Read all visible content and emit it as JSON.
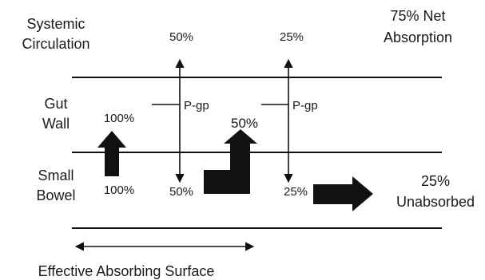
{
  "regions": {
    "systemic": [
      "Systemic",
      "Circulation"
    ],
    "gut_wall": [
      "Gut",
      "Wall"
    ],
    "small_bowel": [
      "Small",
      "Bowel"
    ]
  },
  "net_absorption": [
    "75% Net",
    "Absorption"
  ],
  "unabsorbed": [
    "25%",
    "Unabsorbed"
  ],
  "effective_surface": "Effective Absorbing Surface",
  "transporter": "P-gp",
  "percentages": {
    "entry_bowel": "100%",
    "entry_wall": "100%",
    "first_systemic": "50%",
    "first_return": "50%",
    "second_wall": "50%",
    "second_systemic": "25%",
    "second_return": "25%"
  },
  "colors": {
    "ink": "#111111",
    "background": "#ffffff"
  }
}
